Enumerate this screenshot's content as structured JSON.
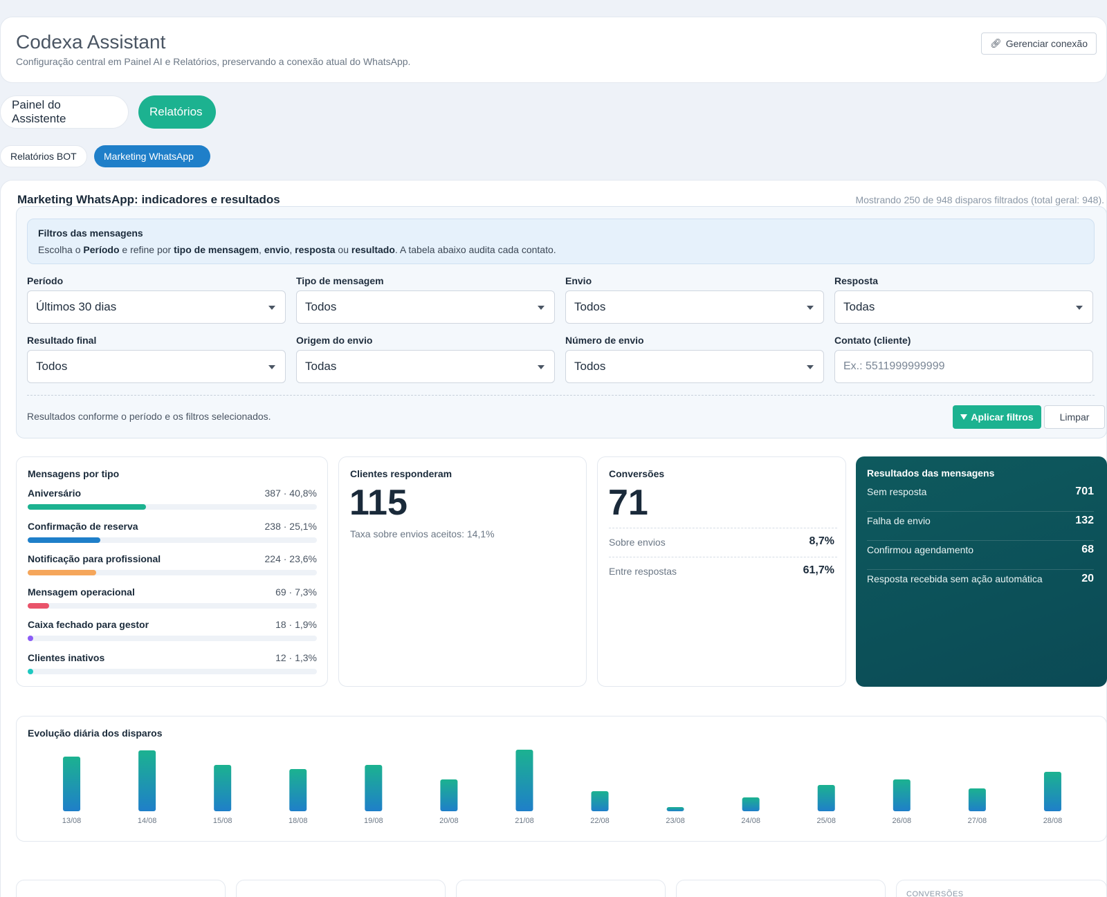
{
  "header": {
    "title": "Codexa Assistant",
    "subtitle": "Configuração central em Painel AI e Relatórios, preservando a conexão atual do WhatsApp.",
    "manage_button": "Gerenciar conexão"
  },
  "main_tabs": [
    {
      "label": "Painel do Assistente",
      "active": false
    },
    {
      "label": "Relatórios",
      "active": true
    }
  ],
  "sub_tabs": [
    {
      "label": "Relatórios BOT",
      "active": false
    },
    {
      "label": "Marketing WhatsApp",
      "active": true
    }
  ],
  "report": {
    "title": "Marketing WhatsApp: indicadores e resultados",
    "count_text": "Mostrando 250 de 948 disparos filtrados (total geral: 948)."
  },
  "filters": {
    "info_title": "Filtros das mensagens",
    "info_text": {
      "p1": "Escolha o ",
      "b1": "Período",
      "p2": " e refine por ",
      "b2": "tipo de mensagem",
      "p3": ", ",
      "b3": "envio",
      "p4": ", ",
      "b4": "resposta",
      "p5": " ou ",
      "b5": "resultado",
      "p6": ". A tabela abaixo audita cada contato."
    },
    "fields": {
      "periodo": {
        "label": "Período",
        "value": "Últimos 30 dias"
      },
      "tipo": {
        "label": "Tipo de mensagem",
        "value": "Todos"
      },
      "envio": {
        "label": "Envio",
        "value": "Todos"
      },
      "resposta": {
        "label": "Resposta",
        "value": "Todas"
      },
      "resultado": {
        "label": "Resultado final",
        "value": "Todos"
      },
      "origem": {
        "label": "Origem do envio",
        "value": "Todas"
      },
      "numero": {
        "label": "Número de envio",
        "value": "Todos"
      },
      "contato": {
        "label": "Contato (cliente)",
        "value": "",
        "placeholder": "Ex.: 5511999999999"
      }
    },
    "footer_text": "Resultados conforme o período e os filtros selecionados.",
    "apply_label": "Aplicar filtros",
    "clear_label": "Limpar"
  },
  "messages_by_type": {
    "title": "Mensagens por tipo",
    "items": [
      {
        "name": "Aniversário",
        "value": "387 · 40,8%",
        "share": 40.8,
        "color": "#1cb290"
      },
      {
        "name": "Confirmação de reserva",
        "value": "238 · 25,1%",
        "share": 25.1,
        "color": "#1f7fc9"
      },
      {
        "name": "Notificação para profissional",
        "value": "224 · 23,6%",
        "share": 23.6,
        "color": "#f5a65b"
      },
      {
        "name": "Mensagem operacional",
        "value": "69 · 7,3%",
        "share": 7.3,
        "color": "#e9536a"
      },
      {
        "name": "Caixa fechado para gestor",
        "value": "18 · 1,9%",
        "share": 1.9,
        "color": "#8b5cf6"
      },
      {
        "name": "Clientes inativos",
        "value": "12 · 1,3%",
        "share": 1.3,
        "color": "#1ec8c0"
      }
    ]
  },
  "responded": {
    "title": "Clientes responderam",
    "value": "115",
    "rate": "Taxa sobre envios aceitos: 14,1%"
  },
  "conversions": {
    "title": "Conversões",
    "value": "71",
    "rows": [
      {
        "label": "Sobre envios",
        "value": "8,7%"
      },
      {
        "label": "Entre respostas",
        "value": "61,7%"
      }
    ]
  },
  "results": {
    "title": "Resultados das mensagens",
    "rows": [
      {
        "label": "Sem resposta",
        "value": "701"
      },
      {
        "label": "Falha de envio",
        "value": "132"
      },
      {
        "label": "Confirmou agendamento",
        "value": "68"
      },
      {
        "label": "Resposta recebida sem ação automática",
        "value": "20"
      }
    ]
  },
  "chart_data": {
    "type": "bar",
    "title": "Evolução diária dos disparos",
    "categories": [
      "13/08",
      "14/08",
      "15/08",
      "18/08",
      "19/08",
      "20/08",
      "21/08",
      "22/08",
      "23/08",
      "24/08",
      "25/08",
      "26/08",
      "27/08",
      "28/08"
    ],
    "values": [
      79,
      88,
      67,
      61,
      67,
      46,
      89,
      29,
      6,
      20,
      38,
      46,
      33,
      57
    ],
    "xlabel": "",
    "ylabel": "",
    "grid": false,
    "colors": {
      "top": "#1cb290",
      "bottom": "#1f7fc9"
    }
  },
  "bottom_cards": {
    "conversions_label": "CONVERSÕES"
  },
  "colors": {
    "accent_green": "#1cb290",
    "accent_blue": "#1f7fc9",
    "results_bg": "#0e5a5e"
  }
}
